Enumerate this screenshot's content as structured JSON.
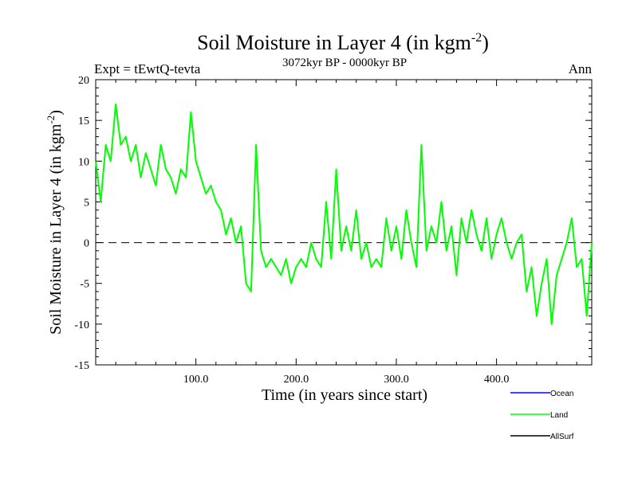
{
  "chart_data": {
    "type": "line",
    "title": "Soil Moisture in Layer 4 (in kgm",
    "title_units_exponent": "-2",
    "title_close": ")",
    "subtitle_left": "Expt = tEwtQ-tevta",
    "subtitle_center": "3072kyr BP - 0000kyr BP",
    "subtitle_right": "Ann",
    "xlabel": "Time (in years since start)",
    "ylabel": "Soil Moisture in Layer 4 (in kgm",
    "ylabel_exponent": "-2",
    "ylabel_close": ")",
    "xlim": [
      0,
      495
    ],
    "ylim": [
      -15,
      20
    ],
    "x_ticks": [
      100,
      200,
      300,
      400
    ],
    "x_tick_labels": [
      "100.0",
      "200.0",
      "300.0",
      "400.0"
    ],
    "y_ticks": [
      -15,
      -10,
      -5,
      0,
      5,
      10,
      15,
      20
    ],
    "y_tick_labels": [
      "-15",
      "-10",
      "-5",
      "0",
      "5",
      "10",
      "15",
      "20"
    ],
    "zero_line": true,
    "legend": [
      {
        "name": "Ocean",
        "color": "#0000ff"
      },
      {
        "name": "Land",
        "color": "#00ff00"
      },
      {
        "name": "AllSurf",
        "color": "#000000"
      }
    ],
    "series": [
      {
        "name": "Land",
        "color": "#00ff00",
        "x": [
          0,
          5,
          10,
          15,
          20,
          25,
          30,
          35,
          40,
          45,
          50,
          55,
          60,
          65,
          70,
          75,
          80,
          85,
          90,
          95,
          100,
          105,
          110,
          115,
          120,
          125,
          130,
          135,
          140,
          145,
          150,
          155,
          160,
          165,
          170,
          175,
          180,
          185,
          190,
          195,
          200,
          205,
          210,
          215,
          220,
          225,
          230,
          235,
          240,
          245,
          250,
          255,
          260,
          265,
          270,
          275,
          280,
          285,
          290,
          295,
          300,
          305,
          310,
          315,
          320,
          325,
          330,
          335,
          340,
          345,
          350,
          355,
          360,
          365,
          370,
          375,
          380,
          385,
          390,
          395,
          400,
          405,
          410,
          415,
          420,
          425,
          430,
          435,
          440,
          445,
          450,
          455,
          460,
          465,
          470,
          475,
          480,
          485,
          490,
          495
        ],
        "values": [
          10,
          5,
          12,
          10,
          17,
          12,
          13,
          10,
          12,
          8,
          11,
          9,
          7,
          12,
          9,
          8,
          6,
          9,
          8,
          16,
          10,
          8,
          6,
          7,
          5,
          4,
          1,
          3,
          0,
          2,
          -5,
          -6,
          12,
          -1,
          -3,
          -2,
          -3,
          -4,
          -2,
          -5,
          -3,
          -2,
          -3,
          0,
          -2,
          -3,
          5,
          -2,
          9,
          -1,
          2,
          -1,
          4,
          -2,
          0,
          -3,
          -2,
          -3,
          3,
          -1,
          2,
          -2,
          4,
          0,
          -3,
          12,
          -1,
          2,
          0,
          5,
          -1,
          2,
          -4,
          3,
          0,
          4,
          1,
          -1,
          3,
          -2,
          1,
          3,
          0,
          -2,
          0,
          1,
          -6,
          -3,
          -9,
          -5,
          -2,
          -10,
          -4,
          -2,
          0,
          3,
          -3,
          -2,
          -9,
          0
        ]
      }
    ]
  }
}
